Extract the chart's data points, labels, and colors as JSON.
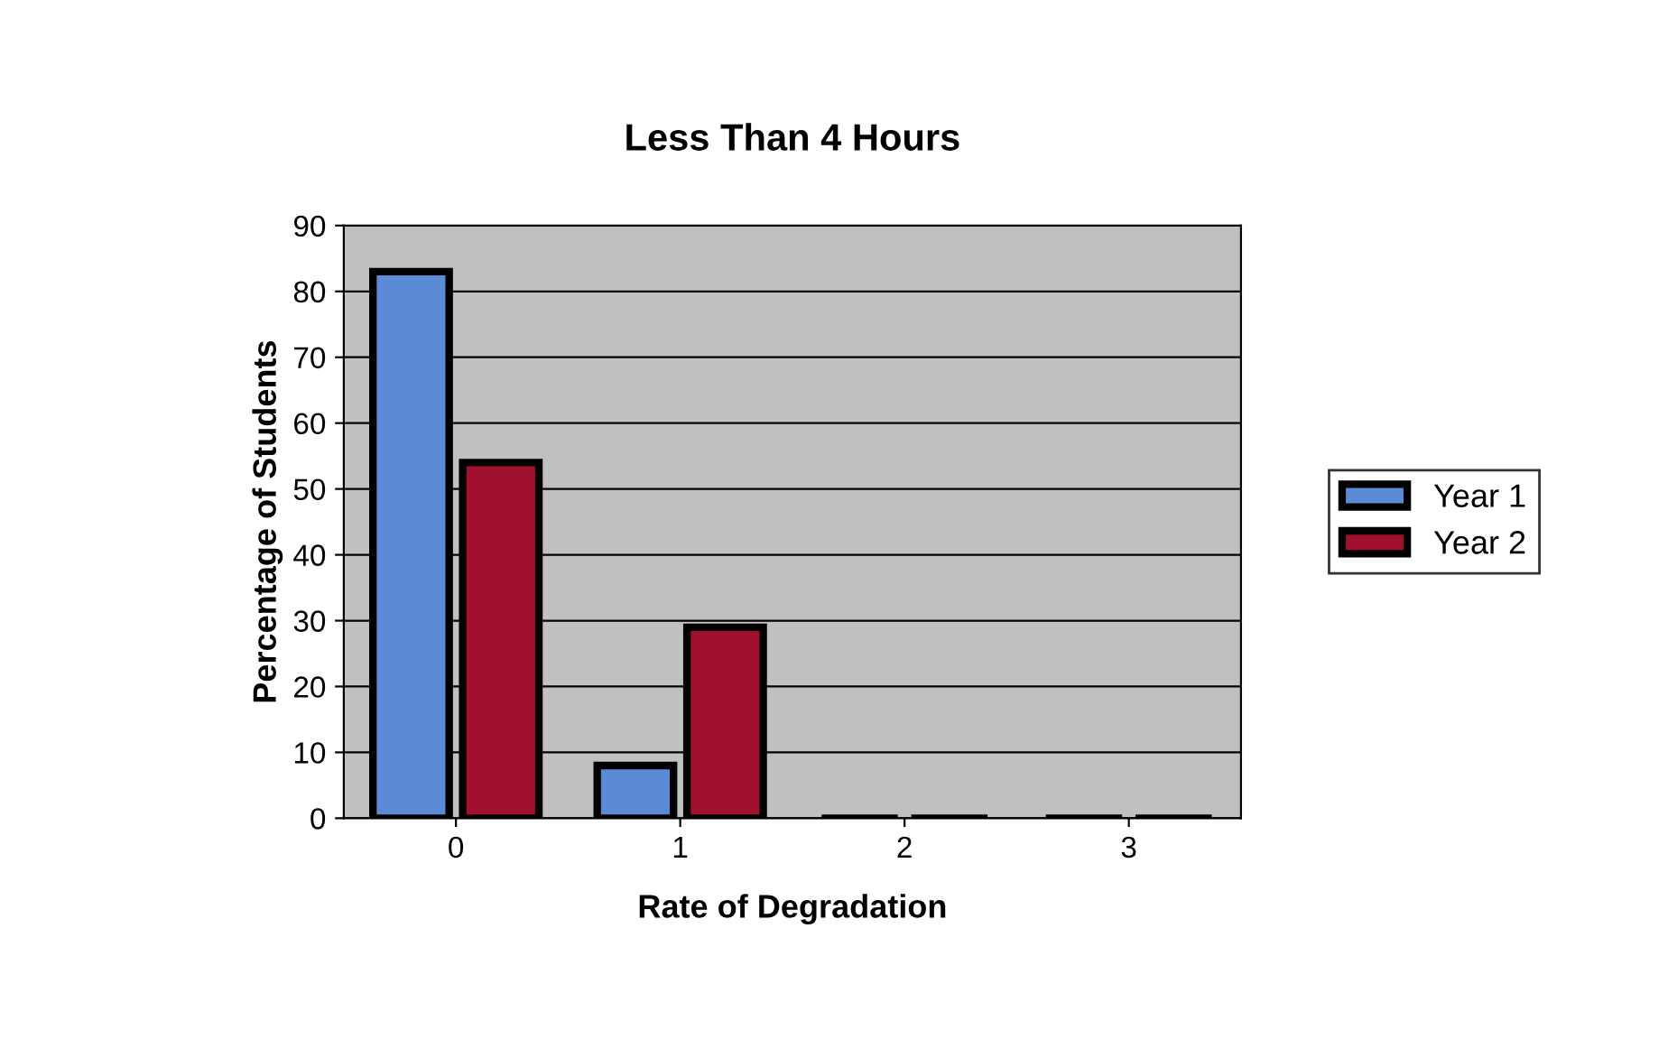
{
  "chart_data": {
    "type": "bar",
    "title": "Less Than 4 Hours",
    "xlabel": "Rate of Degradation",
    "ylabel": "Percentage of Students",
    "categories": [
      "0",
      "1",
      "2",
      "3"
    ],
    "series": [
      {
        "name": "Year 1",
        "color": "#5b8bd6",
        "values": [
          83,
          8,
          0,
          0
        ]
      },
      {
        "name": "Year 2",
        "color": "#a0102e",
        "values": [
          54,
          29,
          0,
          0
        ]
      }
    ],
    "ylim": [
      0,
      90
    ],
    "yticks": [
      0,
      10,
      20,
      30,
      40,
      50,
      60,
      70,
      80,
      90
    ],
    "grid": "y",
    "legend": "right"
  }
}
